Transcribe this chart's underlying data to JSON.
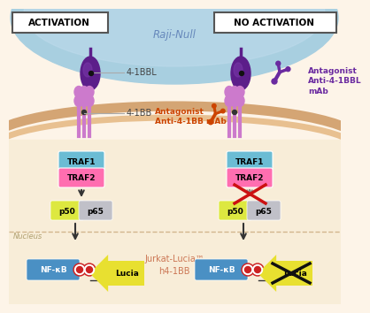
{
  "bg_color": "#fdf4e8",
  "cell_blue": "#a8cfe0",
  "cell_blue_inner": "#bddaeb",
  "membrane_tan": "#d4a574",
  "membrane_fill": "#f5e0c0",
  "jurkat_fill": "#f8edd8",
  "nucleus_dash": "#c8a87a",
  "activation_label": "ACTIVATION",
  "no_activation_label": "NO ACTIVATION",
  "raji_null_label": "Raji-Null",
  "jurkat_label": "Jurkat-Lucia™\nh4-1BB",
  "nucleus_label": "Nucleus",
  "label_4_1BBL": "4-1BBL",
  "label_4_1BB": "4-1BB",
  "antagonist_orange": "Antagonist\nAnti-4-1BB mAb",
  "antagonist_purple": "Antagonist\nAnti-4-1BBL\nmAb",
  "traf1_color": "#6bbcd4",
  "traf2_color": "#ff6eb0",
  "p50_color": "#dde840",
  "p65_color": "#c0c0c8",
  "nfkb_color": "#4a90c4",
  "lucia_color": "#e8e030",
  "arrow_dark": "#333333",
  "arrow_gray": "#888888",
  "red_x": "#cc1111",
  "black_x": "#111111",
  "purple_dark": "#5c1e8a",
  "purple_mid": "#7a3aaa",
  "purple_antibody": "#6a2aa0",
  "pink_receptor": "#cc7acc",
  "pink_receptor_dark": "#aa4488",
  "orange_antibody": "#cc4400",
  "label_color": "#444444",
  "line_gray": "#aaaaaa"
}
